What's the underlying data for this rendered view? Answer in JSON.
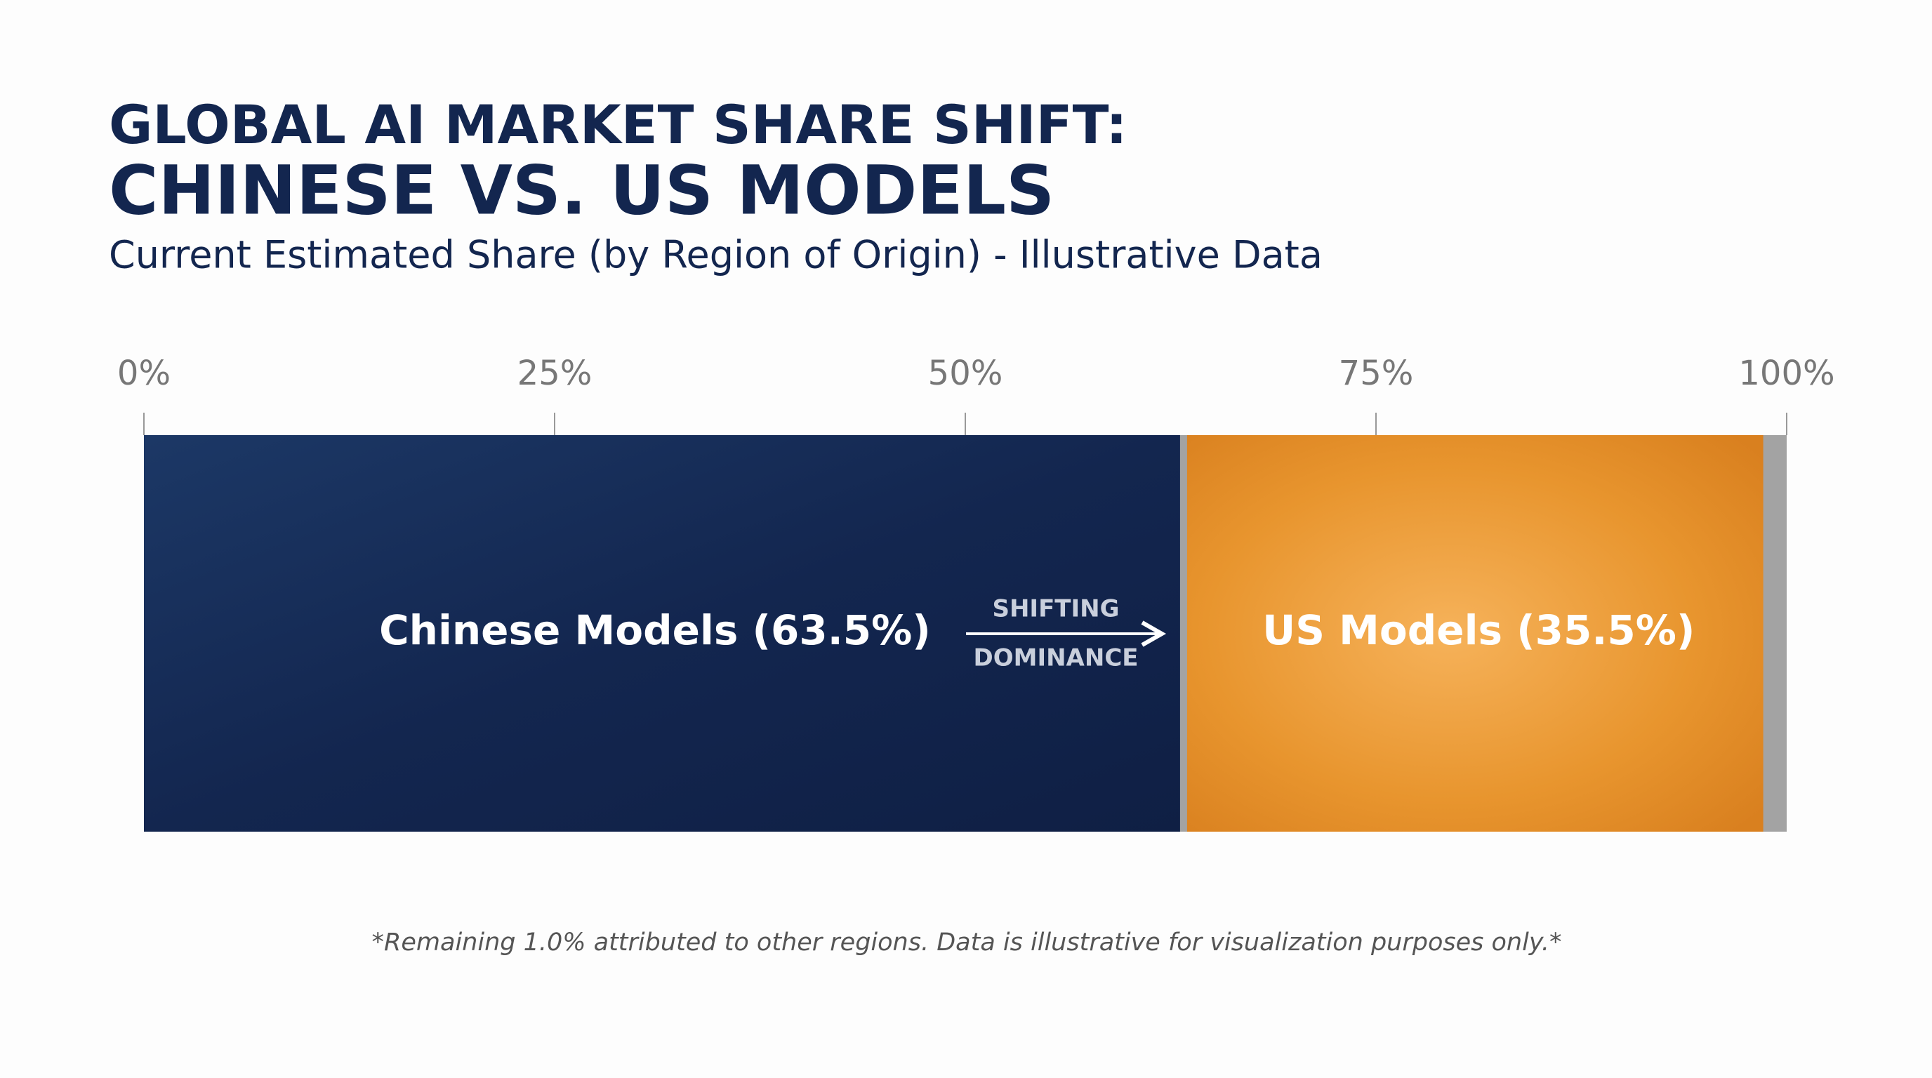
{
  "chart_data": {
    "type": "stacked-bar-horizontal",
    "title": "GLOBAL AI MARKET SHARE SHIFT:",
    "subtitle_main": "CHINESE VS. US MODELS",
    "subtitle": "Current Estimated Share (by Region of Origin) - Illustrative Data",
    "series": [
      {
        "color": "#13264f",
        "values": [
          63.5
        ],
        "value_labels": [
          "Chinese Models (63.5%)"
        ]
      },
      {
        "color": "#e8952e",
        "values": [
          35.5
        ],
        "value_labels": [
          "US Models (35.5%)"
        ]
      },
      {
        "color": "#a3a3a3",
        "values": [
          1.0
        ]
      }
    ],
    "xlim": [
      0,
      100
    ],
    "xticks": [
      {
        "value": 0,
        "label": "0%"
      },
      {
        "value": 25,
        "label": "25%"
      },
      {
        "value": 50,
        "label": "50%"
      },
      {
        "value": 75,
        "label": "75%"
      },
      {
        "value": 100,
        "label": "100%"
      }
    ],
    "annotations": [
      "SHIFTING",
      "DOMINANCE"
    ],
    "footnote": "*Remaining 1.0% attributed to other regions. Data is illustrative for visualization purposes only.*"
  }
}
